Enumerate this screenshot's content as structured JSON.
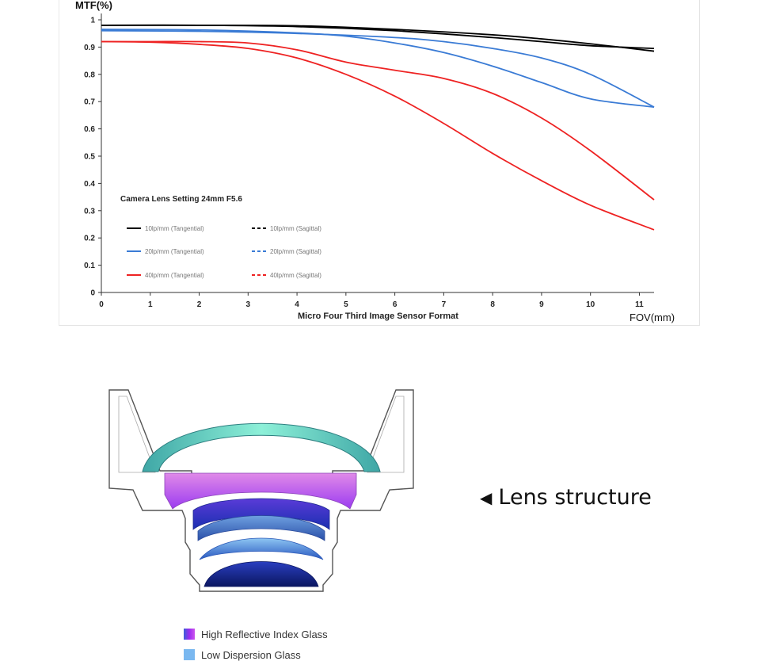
{
  "chart_data": {
    "type": "line",
    "ylabel": "MTF(%)",
    "xlabel": "Micro Four Third Image Sensor Format",
    "xunit_label": "FOV(mm)",
    "xlim": [
      0,
      11.3
    ],
    "ylim": [
      0,
      1
    ],
    "x_ticks": [
      "0",
      "1",
      "2",
      "3",
      "4",
      "5",
      "6",
      "7",
      "8",
      "9",
      "10",
      "11"
    ],
    "y_ticks": [
      "0",
      "0.1",
      "0.2",
      "0.3",
      "0.4",
      "0.5",
      "0.6",
      "0.7",
      "0.8",
      "0.9",
      "1"
    ],
    "legend_title": "Camera Lens Setting 24mm F5.6",
    "legend_placement": "bottom-left",
    "grid": false,
    "series": [
      {
        "name": "10lp/mm (Tangential)",
        "color": "#000000",
        "dash": false,
        "x": [
          0,
          2,
          4,
          6,
          8,
          9,
          10,
          11.3
        ],
        "y": [
          0.98,
          0.98,
          0.978,
          0.965,
          0.945,
          0.93,
          0.912,
          0.885
        ]
      },
      {
        "name": "10lp/mm (Sagittal)",
        "color": "#000000",
        "dash": true,
        "x": [
          0,
          2,
          4,
          6,
          8,
          9,
          10,
          11.3
        ],
        "y": [
          0.98,
          0.98,
          0.975,
          0.96,
          0.935,
          0.92,
          0.905,
          0.895
        ]
      },
      {
        "name": "20lp/mm (Tangential)",
        "color": "#3a7bd5",
        "dash": false,
        "x": [
          0,
          2,
          4,
          5,
          6,
          7,
          8,
          9,
          10,
          11.3
        ],
        "y": [
          0.965,
          0.963,
          0.952,
          0.94,
          0.915,
          0.88,
          0.83,
          0.77,
          0.71,
          0.68
        ]
      },
      {
        "name": "20lp/mm (Sagittal)",
        "color": "#3a7bd5",
        "dash": true,
        "x": [
          0,
          2,
          4,
          6,
          7,
          8,
          9,
          10,
          11.3
        ],
        "y": [
          0.96,
          0.958,
          0.95,
          0.935,
          0.92,
          0.895,
          0.86,
          0.8,
          0.68
        ]
      },
      {
        "name": "40lp/mm (Tangential)",
        "color": "#ee2222",
        "dash": false,
        "x": [
          0,
          1,
          2,
          3,
          4,
          5,
          6,
          7,
          8,
          9,
          10,
          11.3
        ],
        "y": [
          0.92,
          0.918,
          0.91,
          0.895,
          0.86,
          0.8,
          0.72,
          0.62,
          0.51,
          0.41,
          0.32,
          0.23
        ]
      },
      {
        "name": "40lp/mm (Sagittal)",
        "color": "#ee2222",
        "dash": true,
        "x": [
          0,
          1,
          2,
          3,
          4,
          5,
          6,
          7,
          8,
          9,
          10,
          11.3
        ],
        "y": [
          0.92,
          0.92,
          0.92,
          0.915,
          0.89,
          0.845,
          0.815,
          0.785,
          0.73,
          0.64,
          0.52,
          0.34
        ]
      }
    ]
  },
  "lens": {
    "label": "Lens structure",
    "label_arrow": "◀",
    "colors": {
      "dome": "#5fd6c5",
      "high_index": "#cc55ee",
      "blue": "#3b5fd8",
      "navy": "#0d1e7a",
      "low_dispersion": "#7ab8f0"
    }
  },
  "glass_legend": [
    {
      "label": "High Reflective Index Glass",
      "color": "#9b2bf0"
    },
    {
      "label": "Low Dispersion Glass",
      "color": "#7ab8f0"
    }
  ]
}
